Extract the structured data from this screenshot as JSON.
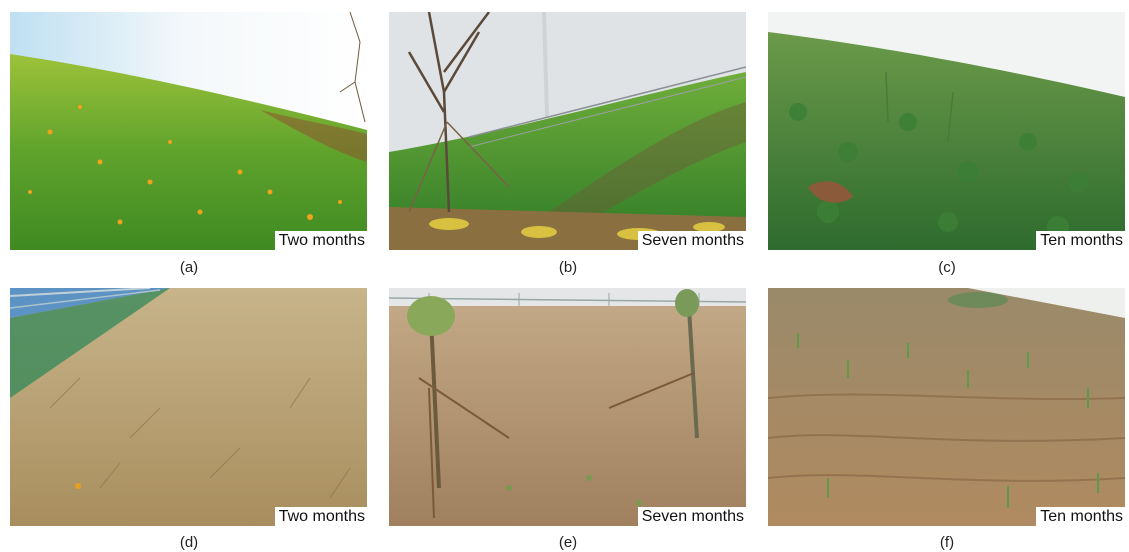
{
  "figure": {
    "panels": [
      {
        "id": "a",
        "caption": "(a)",
        "time_label": "Two months",
        "scene": "green grass slope with yellow flowers"
      },
      {
        "id": "b",
        "caption": "(b)",
        "time_label": "Seven months",
        "scene": "green slope with young tree and fence"
      },
      {
        "id": "c",
        "caption": "(c)",
        "time_label": "Ten months",
        "scene": "dense green ground cover slope"
      },
      {
        "id": "d",
        "caption": "(d)",
        "time_label": "Two months",
        "scene": "dry brown grass slope"
      },
      {
        "id": "e",
        "caption": "(e)",
        "time_label": "Seven months",
        "scene": "bare brown slope with two staked saplings"
      },
      {
        "id": "f",
        "caption": "(f)",
        "time_label": "Ten months",
        "scene": "eroded brown slope with sparse green seedlings"
      }
    ]
  },
  "colors": {
    "grass_green": "#4f9a2a",
    "dark_green": "#2f6e22",
    "dry_brown": "#b39b6c",
    "soil_brown": "#a27e58",
    "sky": "#dfe8ee"
  }
}
